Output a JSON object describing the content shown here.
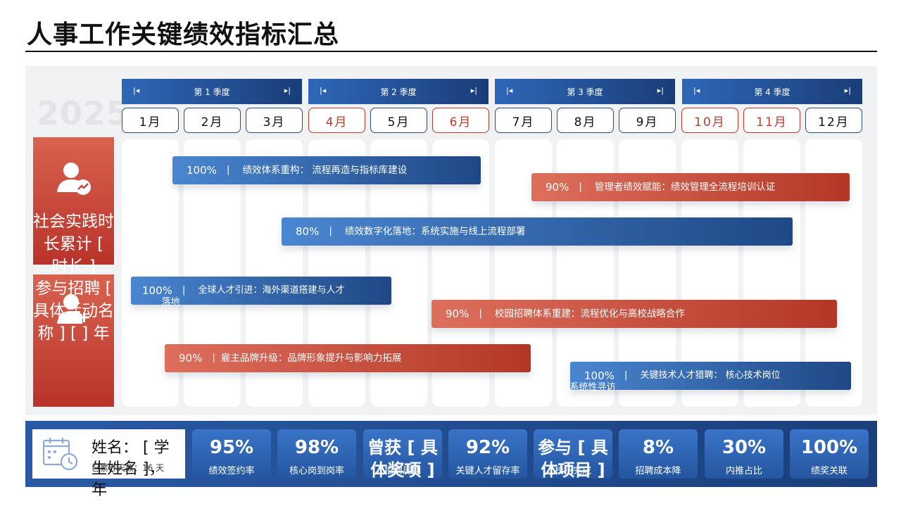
{
  "title": "人事工作关键绩效指标汇总",
  "year": "2025",
  "quarters": [
    {
      "label": "第 1 季度"
    },
    {
      "label": "第 2 季度"
    },
    {
      "label": "第 3 季度"
    },
    {
      "label": "第 4 季度"
    }
  ],
  "quarter_arrow_left": "|◂",
  "quarter_arrow_right": "▸|",
  "months": [
    "1月",
    "2月",
    "3月",
    "4月",
    "5月",
    "6月",
    "7月",
    "8月",
    "9月",
    "10月",
    "11月",
    "12月"
  ],
  "highlighted_months": [
    "4月",
    "6月",
    "10月",
    "11月"
  ],
  "sidebar": [
    {
      "icon": "user-chart-icon",
      "text": "社会实践时长累计 [ 时长 ]"
    },
    {
      "icon": "user-add-icon",
      "text": "参与招聘 [ 具体活动名称 ] [ ] 年"
    }
  ],
  "bars": [
    {
      "pct": "100%",
      "sep": "|",
      "text": "绩效体系重构： 流程再造与指标库建设",
      "color": "blue"
    },
    {
      "pct": "90%",
      "sep": "|",
      "text": "管理者绩效赋能：绩效管理全流程培训认证",
      "color": "red"
    },
    {
      "pct": "80%",
      "sep": "|",
      "text": "绩效数字化落地：系统实施与线上流程部署",
      "color": "blue"
    },
    {
      "pct": "100%",
      "sep": "|",
      "text": "全球人才引进：海外渠道搭建与人才落地",
      "color": "blue"
    },
    {
      "pct": "90%",
      "sep": "|",
      "text": "校园招聘体系重建：流程优化与高校战略合作",
      "color": "red"
    },
    {
      "pct": "90%",
      "sep": "|",
      "text": "雇主品牌升级：品牌形象提升与影响力拓展",
      "color": "red"
    },
    {
      "pct": "100%",
      "sep": "|",
      "text": "关键技术人才猎聘： 核心技术岗位系统性寻访",
      "color": "blue"
    }
  ],
  "user": {
    "name": "姓名： [ 学生姓名 ]，年",
    "stat": "已累计天数：16 天",
    "icon": "calendar-clock-icon"
  },
  "kpis": [
    {
      "value": "95%",
      "label": "绩效签约率"
    },
    {
      "value": "98%",
      "label": "核心岗到岗率"
    },
    {
      "value": "曾获 [ 具体奖项 ]",
      "label": "招聘周期"
    },
    {
      "value": "92%",
      "label": "关键人才留存率"
    },
    {
      "value": "参与 [ 具体项目 ]",
      "label": "校招完成"
    },
    {
      "value": "8%",
      "label": "招聘成本降"
    },
    {
      "value": "30%",
      "label": "内推占比"
    },
    {
      "value": "100%",
      "label": "绩奖关联"
    }
  ],
  "colors": {
    "blue_dark": "#1a3d78",
    "blue_light": "#4a86d0",
    "red_dark": "#b33727",
    "red_light": "#de6f5d"
  }
}
